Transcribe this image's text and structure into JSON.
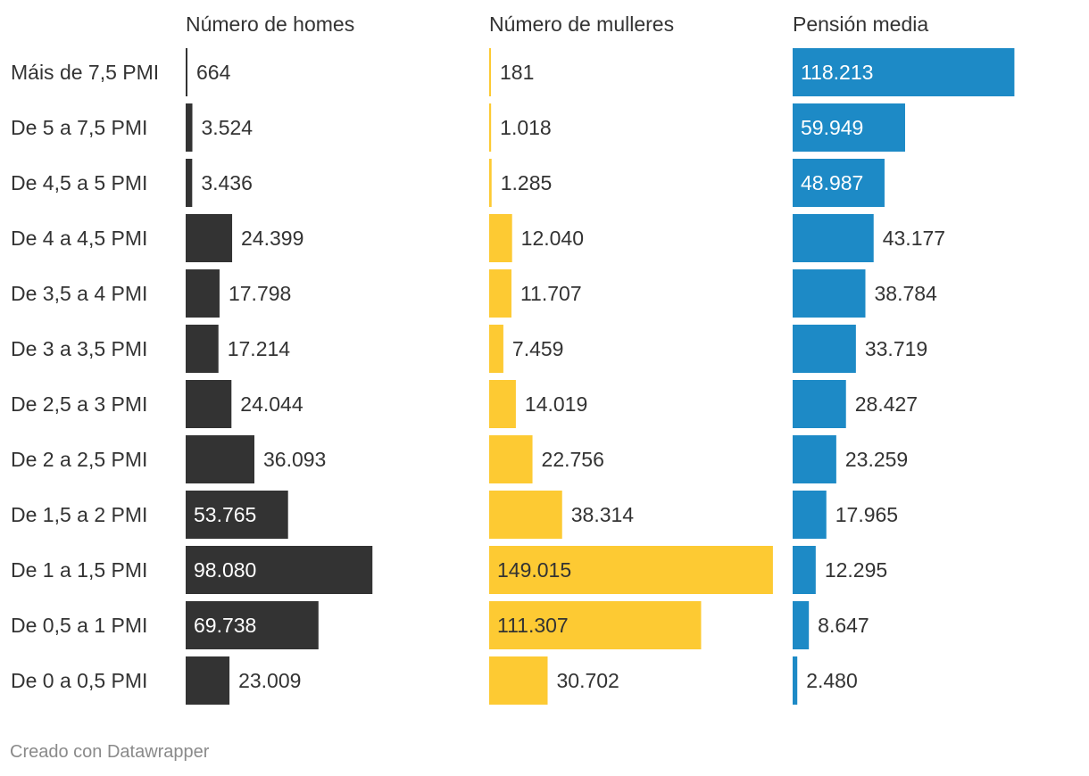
{
  "chart_data": {
    "type": "bar",
    "orientation": "horizontal",
    "categories": [
      "Máis de 7,5 PMI",
      "De 5 a 7,5 PMI",
      "De 4,5 a 5 PMI",
      "De 4 a 4,5 PMI",
      "De 3,5 a 4 PMI",
      "De 3 a 3,5 PMI",
      "De 2,5 a 3 PMI",
      "De 2 a 2,5 PMI",
      "De 1,5 a 2 PMI",
      "De 1 a 1,5 PMI",
      "De 0,5 a 1 PMI",
      "De 0 a 0,5 PMI"
    ],
    "series": [
      {
        "name": "Número de homes",
        "color": "#333333",
        "values": [
          664,
          3524,
          3436,
          24399,
          17798,
          17214,
          24044,
          36093,
          53765,
          98080,
          69738,
          23009
        ],
        "labels": [
          "664",
          "3.524",
          "3.436",
          "24.399",
          "17.798",
          "17.214",
          "24.044",
          "36.093",
          "53.765",
          "98.080",
          "69.738",
          "23.009"
        ]
      },
      {
        "name": "Número de mulleres",
        "color": "#fdca33",
        "values": [
          181,
          1018,
          1285,
          12040,
          11707,
          7459,
          14019,
          22756,
          38314,
          149015,
          111307,
          30702
        ],
        "labels": [
          "181",
          "1.018",
          "1.285",
          "12.040",
          "11.707",
          "7.459",
          "14.019",
          "22.756",
          "38.314",
          "149.015",
          "111.307",
          "30.702"
        ]
      },
      {
        "name": "Pensión media",
        "color": "#1d8ac6",
        "values": [
          118213,
          59949,
          48987,
          43177,
          38784,
          33719,
          28427,
          23259,
          17965,
          12295,
          8647,
          2480
        ],
        "labels": [
          "118.213",
          "59.949",
          "48.987",
          "43.177",
          "38.784",
          "33.719",
          "28.427",
          "23.259",
          "17.965",
          "12.295",
          "8.647",
          "2.480"
        ]
      }
    ],
    "grid": false,
    "legend": "none"
  },
  "credit": "Creado con Datawrapper"
}
